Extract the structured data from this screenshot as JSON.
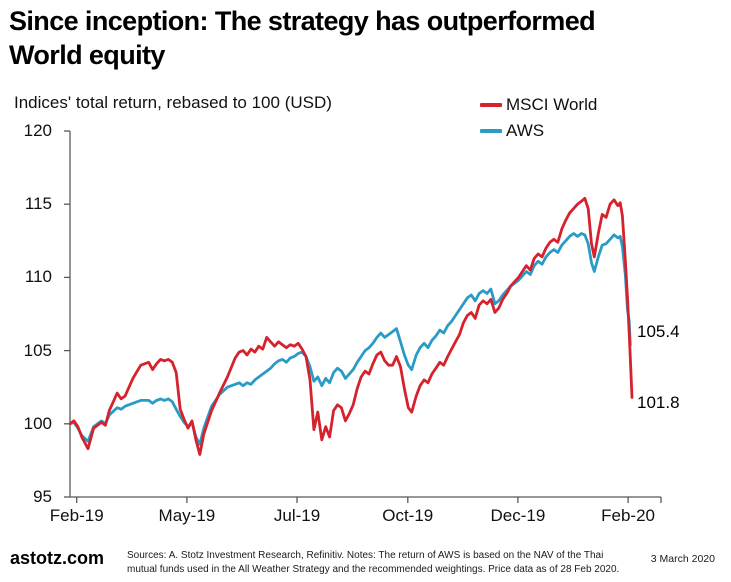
{
  "title": {
    "line1": "Since inception: The strategy has outperformed",
    "line2": "World equity"
  },
  "subtitle": "Indices' total return, rebased to 100 (USD)",
  "legend": {
    "items": [
      {
        "label": "MSCI World",
        "color": "#d5222d"
      },
      {
        "label": "AWS",
        "color": "#2a9bc5"
      }
    ]
  },
  "footer": {
    "brand": "astotz.com",
    "sources": "Sources: A. Stotz Investment Research, Refinitiv. Notes: The return of AWS is based on the NAV of the Thai mutual funds used in the All Weather Strategy and the recommended weightings. Price data as of 28 Feb 2020.",
    "date": "3 March 2020"
  },
  "chart_data": {
    "type": "line",
    "title": "Since inception: The strategy has outperformed World equity",
    "subtitle": "Indices' total return, rebased to 100 (USD)",
    "x_unit": "fraction of time axis, 0 = start (Feb 2019), 1 = end (28 Feb 2020)",
    "grid": false,
    "legend_position": "top-right",
    "axis_color": "#595959",
    "y_axis": {
      "min": 95,
      "max": 120,
      "ticks": [
        95,
        100,
        105,
        110,
        115,
        120
      ]
    },
    "x_axis": {
      "ticks": [
        {
          "label": "Feb-19",
          "t": 0.012
        },
        {
          "label": "May-19",
          "t": 0.208
        },
        {
          "label": "Jul-19",
          "t": 0.404
        },
        {
          "label": "Oct-19",
          "t": 0.601
        },
        {
          "label": "Dec-19",
          "t": 0.797
        },
        {
          "label": "Feb-20",
          "t": 0.993
        }
      ]
    },
    "series": [
      {
        "name": "MSCI World",
        "color": "#d5222d",
        "end_label": "101.8",
        "points": [
          [
            0.0,
            100.0
          ],
          [
            0.007,
            100.2
          ],
          [
            0.014,
            99.8
          ],
          [
            0.021,
            99.1
          ],
          [
            0.032,
            98.3
          ],
          [
            0.042,
            99.7
          ],
          [
            0.056,
            100.1
          ],
          [
            0.063,
            99.9
          ],
          [
            0.07,
            100.9
          ],
          [
            0.084,
            102.1
          ],
          [
            0.091,
            101.7
          ],
          [
            0.098,
            101.9
          ],
          [
            0.112,
            103.1
          ],
          [
            0.126,
            104.0
          ],
          [
            0.14,
            104.2
          ],
          [
            0.147,
            103.7
          ],
          [
            0.154,
            104.1
          ],
          [
            0.161,
            104.4
          ],
          [
            0.168,
            104.3
          ],
          [
            0.175,
            104.4
          ],
          [
            0.182,
            104.2
          ],
          [
            0.189,
            103.5
          ],
          [
            0.196,
            101.0
          ],
          [
            0.203,
            100.3
          ],
          [
            0.21,
            99.7
          ],
          [
            0.217,
            100.2
          ],
          [
            0.224,
            98.9
          ],
          [
            0.231,
            97.9
          ],
          [
            0.238,
            99.3
          ],
          [
            0.252,
            100.9
          ],
          [
            0.259,
            101.5
          ],
          [
            0.266,
            102.1
          ],
          [
            0.28,
            103.2
          ],
          [
            0.294,
            104.5
          ],
          [
            0.301,
            104.9
          ],
          [
            0.308,
            105.0
          ],
          [
            0.315,
            104.7
          ],
          [
            0.322,
            105.1
          ],
          [
            0.329,
            104.9
          ],
          [
            0.336,
            105.3
          ],
          [
            0.343,
            105.1
          ],
          [
            0.35,
            105.9
          ],
          [
            0.357,
            105.6
          ],
          [
            0.364,
            105.3
          ],
          [
            0.371,
            105.6
          ],
          [
            0.378,
            105.4
          ],
          [
            0.385,
            105.2
          ],
          [
            0.392,
            105.4
          ],
          [
            0.399,
            105.3
          ],
          [
            0.406,
            105.5
          ],
          [
            0.413,
            105.1
          ],
          [
            0.42,
            104.6
          ],
          [
            0.427,
            103.0
          ],
          [
            0.434,
            99.6
          ],
          [
            0.441,
            100.8
          ],
          [
            0.448,
            98.9
          ],
          [
            0.455,
            99.8
          ],
          [
            0.462,
            99.1
          ],
          [
            0.469,
            100.9
          ],
          [
            0.476,
            101.3
          ],
          [
            0.483,
            101.1
          ],
          [
            0.49,
            100.2
          ],
          [
            0.497,
            100.7
          ],
          [
            0.504,
            101.3
          ],
          [
            0.511,
            102.4
          ],
          [
            0.518,
            103.2
          ],
          [
            0.525,
            103.6
          ],
          [
            0.532,
            103.4
          ],
          [
            0.539,
            104.1
          ],
          [
            0.546,
            104.7
          ],
          [
            0.553,
            104.9
          ],
          [
            0.56,
            104.3
          ],
          [
            0.567,
            104.0
          ],
          [
            0.574,
            104.0
          ],
          [
            0.581,
            104.6
          ],
          [
            0.588,
            103.9
          ],
          [
            0.595,
            102.4
          ],
          [
            0.602,
            101.1
          ],
          [
            0.608,
            100.8
          ],
          [
            0.616,
            101.9
          ],
          [
            0.623,
            102.6
          ],
          [
            0.63,
            103.0
          ],
          [
            0.637,
            102.8
          ],
          [
            0.644,
            103.4
          ],
          [
            0.651,
            103.8
          ],
          [
            0.658,
            104.2
          ],
          [
            0.665,
            104.0
          ],
          [
            0.672,
            104.6
          ],
          [
            0.679,
            105.1
          ],
          [
            0.686,
            105.6
          ],
          [
            0.693,
            106.1
          ],
          [
            0.7,
            106.9
          ],
          [
            0.707,
            107.4
          ],
          [
            0.714,
            107.6
          ],
          [
            0.721,
            107.2
          ],
          [
            0.728,
            108.1
          ],
          [
            0.735,
            108.4
          ],
          [
            0.742,
            108.2
          ],
          [
            0.749,
            108.5
          ],
          [
            0.756,
            107.6
          ],
          [
            0.763,
            107.9
          ],
          [
            0.77,
            108.5
          ],
          [
            0.777,
            108.9
          ],
          [
            0.784,
            109.4
          ],
          [
            0.791,
            109.7
          ],
          [
            0.798,
            110.0
          ],
          [
            0.805,
            110.4
          ],
          [
            0.812,
            110.8
          ],
          [
            0.819,
            110.5
          ],
          [
            0.826,
            111.3
          ],
          [
            0.833,
            111.6
          ],
          [
            0.84,
            111.4
          ],
          [
            0.847,
            112.0
          ],
          [
            0.854,
            112.4
          ],
          [
            0.861,
            112.6
          ],
          [
            0.868,
            112.4
          ],
          [
            0.875,
            113.3
          ],
          [
            0.882,
            113.9
          ],
          [
            0.889,
            114.4
          ],
          [
            0.896,
            114.7
          ],
          [
            0.903,
            115.0
          ],
          [
            0.91,
            115.2
          ],
          [
            0.916,
            115.4
          ],
          [
            0.922,
            114.7
          ],
          [
            0.928,
            112.3
          ],
          [
            0.933,
            111.4
          ],
          [
            0.94,
            113.0
          ],
          [
            0.947,
            114.3
          ],
          [
            0.954,
            114.1
          ],
          [
            0.961,
            115.0
          ],
          [
            0.968,
            115.3
          ],
          [
            0.975,
            114.9
          ],
          [
            0.979,
            115.1
          ],
          [
            0.983,
            114.2
          ],
          [
            0.988,
            111.2
          ],
          [
            0.992,
            108.6
          ],
          [
            0.996,
            105.3
          ],
          [
            1.0,
            101.8
          ]
        ]
      },
      {
        "name": "AWS",
        "color": "#2a9bc5",
        "end_label": "105.4",
        "points": [
          [
            0.0,
            100.0
          ],
          [
            0.007,
            100.1
          ],
          [
            0.014,
            99.7
          ],
          [
            0.021,
            99.2
          ],
          [
            0.032,
            98.8
          ],
          [
            0.042,
            99.8
          ],
          [
            0.056,
            100.2
          ],
          [
            0.063,
            100.0
          ],
          [
            0.07,
            100.6
          ],
          [
            0.084,
            101.1
          ],
          [
            0.091,
            101.0
          ],
          [
            0.098,
            101.2
          ],
          [
            0.112,
            101.4
          ],
          [
            0.126,
            101.6
          ],
          [
            0.14,
            101.6
          ],
          [
            0.147,
            101.4
          ],
          [
            0.154,
            101.6
          ],
          [
            0.161,
            101.7
          ],
          [
            0.168,
            101.6
          ],
          [
            0.175,
            101.7
          ],
          [
            0.182,
            101.5
          ],
          [
            0.189,
            101.0
          ],
          [
            0.196,
            100.5
          ],
          [
            0.203,
            100.1
          ],
          [
            0.21,
            99.8
          ],
          [
            0.217,
            100.1
          ],
          [
            0.224,
            99.1
          ],
          [
            0.231,
            98.6
          ],
          [
            0.238,
            99.7
          ],
          [
            0.252,
            101.2
          ],
          [
            0.259,
            101.6
          ],
          [
            0.266,
            102.0
          ],
          [
            0.28,
            102.5
          ],
          [
            0.294,
            102.7
          ],
          [
            0.301,
            102.8
          ],
          [
            0.308,
            102.6
          ],
          [
            0.315,
            102.8
          ],
          [
            0.322,
            102.7
          ],
          [
            0.329,
            103.0
          ],
          [
            0.336,
            103.2
          ],
          [
            0.343,
            103.4
          ],
          [
            0.35,
            103.6
          ],
          [
            0.357,
            103.8
          ],
          [
            0.364,
            104.1
          ],
          [
            0.371,
            104.3
          ],
          [
            0.378,
            104.4
          ],
          [
            0.385,
            104.2
          ],
          [
            0.392,
            104.5
          ],
          [
            0.399,
            104.6
          ],
          [
            0.406,
            104.8
          ],
          [
            0.413,
            104.9
          ],
          [
            0.42,
            104.6
          ],
          [
            0.427,
            103.9
          ],
          [
            0.434,
            102.9
          ],
          [
            0.441,
            103.2
          ],
          [
            0.448,
            102.6
          ],
          [
            0.455,
            103.1
          ],
          [
            0.462,
            102.8
          ],
          [
            0.469,
            103.5
          ],
          [
            0.476,
            103.8
          ],
          [
            0.483,
            103.6
          ],
          [
            0.49,
            103.1
          ],
          [
            0.497,
            103.4
          ],
          [
            0.504,
            103.7
          ],
          [
            0.511,
            104.2
          ],
          [
            0.518,
            104.6
          ],
          [
            0.525,
            105.0
          ],
          [
            0.532,
            105.2
          ],
          [
            0.539,
            105.5
          ],
          [
            0.546,
            105.9
          ],
          [
            0.553,
            106.2
          ],
          [
            0.56,
            105.9
          ],
          [
            0.567,
            106.1
          ],
          [
            0.574,
            106.3
          ],
          [
            0.581,
            106.5
          ],
          [
            0.588,
            105.6
          ],
          [
            0.595,
            104.7
          ],
          [
            0.602,
            104.0
          ],
          [
            0.608,
            103.7
          ],
          [
            0.616,
            104.7
          ],
          [
            0.623,
            105.2
          ],
          [
            0.63,
            105.5
          ],
          [
            0.637,
            105.2
          ],
          [
            0.644,
            105.7
          ],
          [
            0.651,
            106.0
          ],
          [
            0.658,
            106.4
          ],
          [
            0.665,
            106.2
          ],
          [
            0.672,
            106.7
          ],
          [
            0.679,
            107.0
          ],
          [
            0.686,
            107.4
          ],
          [
            0.693,
            107.8
          ],
          [
            0.7,
            108.2
          ],
          [
            0.707,
            108.6
          ],
          [
            0.714,
            108.8
          ],
          [
            0.721,
            108.4
          ],
          [
            0.728,
            108.9
          ],
          [
            0.735,
            109.1
          ],
          [
            0.742,
            108.9
          ],
          [
            0.749,
            109.2
          ],
          [
            0.756,
            108.2
          ],
          [
            0.763,
            108.4
          ],
          [
            0.77,
            108.8
          ],
          [
            0.777,
            109.1
          ],
          [
            0.784,
            109.4
          ],
          [
            0.791,
            109.6
          ],
          [
            0.798,
            109.8
          ],
          [
            0.805,
            110.1
          ],
          [
            0.812,
            110.4
          ],
          [
            0.819,
            110.2
          ],
          [
            0.826,
            110.8
          ],
          [
            0.833,
            111.1
          ],
          [
            0.84,
            110.9
          ],
          [
            0.847,
            111.4
          ],
          [
            0.854,
            111.7
          ],
          [
            0.861,
            111.9
          ],
          [
            0.868,
            111.7
          ],
          [
            0.875,
            112.2
          ],
          [
            0.882,
            112.5
          ],
          [
            0.889,
            112.8
          ],
          [
            0.896,
            113.0
          ],
          [
            0.903,
            112.8
          ],
          [
            0.91,
            113.0
          ],
          [
            0.916,
            112.9
          ],
          [
            0.922,
            112.3
          ],
          [
            0.928,
            111.0
          ],
          [
            0.933,
            110.4
          ],
          [
            0.94,
            111.4
          ],
          [
            0.947,
            112.2
          ],
          [
            0.954,
            112.3
          ],
          [
            0.961,
            112.6
          ],
          [
            0.968,
            112.9
          ],
          [
            0.975,
            112.7
          ],
          [
            0.979,
            112.8
          ],
          [
            0.983,
            112.1
          ],
          [
            0.988,
            110.2
          ],
          [
            0.992,
            107.8
          ],
          [
            0.995,
            107.0
          ],
          [
            0.997,
            105.4
          ]
        ]
      }
    ]
  }
}
